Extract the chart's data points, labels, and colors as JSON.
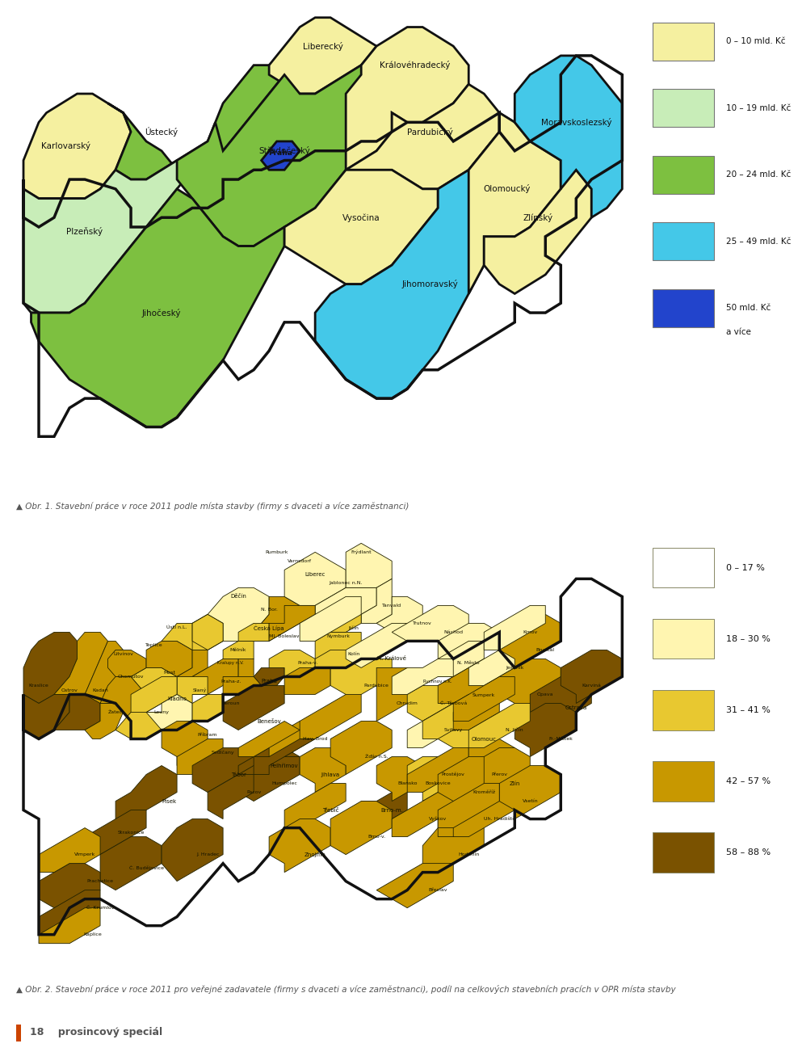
{
  "title1_caption": "Obr. 1. Stavební práce v roce 2011 podle místa stavby (firmy s dvaceti a více zaměstnanci)",
  "title2_caption": "Obr. 2. Stavební práce v roce 2011 pro veřejné zadavatele (firmy s dvaceti a více zaměstnanci), podíl na celkových stavebních pracích v OPR místa stavby",
  "legend1_labels": [
    "0 – 10 mld. Kč",
    "10 – 19 mld. Kč",
    "20 – 24 mld. Kč",
    "25 – 49 mld. Kč",
    "50 mld. Kč\na více"
  ],
  "legend1_colors": [
    "#F5F0A0",
    "#C8EDB8",
    "#7DC040",
    "#44C8E8",
    "#2244CC"
  ],
  "legend2_labels": [
    "0 – 17 %",
    "18 – 30 %",
    "31 – 41 %",
    "42 – 57 %",
    "58 – 88 %"
  ],
  "legend2_colors": [
    "#FFFFFF",
    "#FFF5B0",
    "#E8C830",
    "#C89800",
    "#7A5200"
  ],
  "bg_color": "#FFFFFF",
  "caption_color": "#555555",
  "border_color": "#111111",
  "footer_bar_color": "#CC4400"
}
